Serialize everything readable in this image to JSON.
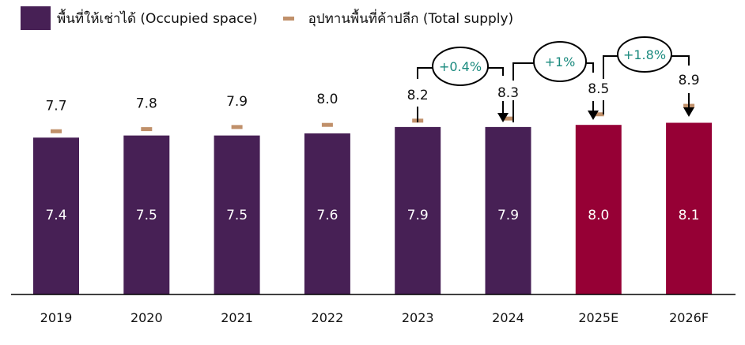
{
  "chart_data": {
    "type": "bar",
    "categories": [
      "2019",
      "2020",
      "2021",
      "2022",
      "2023",
      "2024",
      "2025E",
      "2026F"
    ],
    "series": [
      {
        "name": "พื้นที่ให้เช่าได้ (Occupied space)",
        "values": [
          7.4,
          7.5,
          7.5,
          7.6,
          7.9,
          7.9,
          8.0,
          8.1
        ],
        "labels": [
          "7.4",
          "7.5",
          "7.5",
          "7.6",
          "7.9",
          "7.9",
          "8.0",
          "8.1"
        ]
      },
      {
        "name": "อุปทานพื้นที่ค้าปลีก (Total supply)",
        "values": [
          7.7,
          7.8,
          7.9,
          8.0,
          8.2,
          8.3,
          8.5,
          8.9
        ],
        "labels": [
          "7.7",
          "7.8",
          "7.9",
          "8.0",
          "8.2",
          "8.3",
          "8.5",
          "8.9"
        ]
      }
    ],
    "bar_colors": [
      "#472055",
      "#472055",
      "#472055",
      "#472055",
      "#472055",
      "#472055",
      "#960035",
      "#960035"
    ],
    "supply_color": "#c0906a",
    "annotations": [
      {
        "from": "2023",
        "to": "2024",
        "text": "+0.4%"
      },
      {
        "from": "2024",
        "to": "2025E",
        "text": "+1%"
      },
      {
        "from": "2025E",
        "to": "2026F",
        "text": "+1.8%"
      }
    ],
    "annotation_color": "#1a8a7e",
    "ylim": [
      0,
      9.5
    ]
  }
}
